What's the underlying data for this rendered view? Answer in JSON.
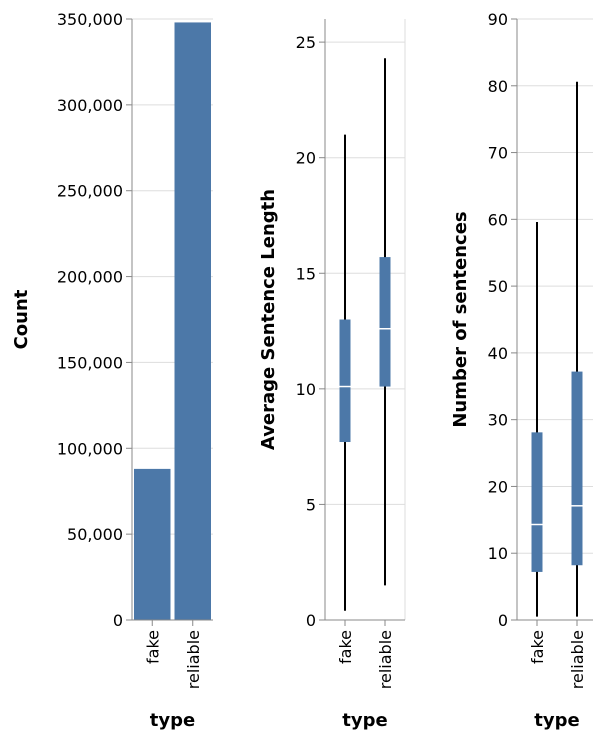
{
  "chart_data": [
    {
      "type": "bar",
      "categories": [
        "fake",
        "reliable"
      ],
      "values": [
        88000,
        348000
      ],
      "xlabel": "type",
      "ylabel": "Count",
      "ylim": [
        0,
        350000
      ],
      "yticks": [
        0,
        50000,
        100000,
        150000,
        200000,
        250000,
        300000,
        350000
      ],
      "ytick_labels": [
        "0",
        "50,000",
        "100,000",
        "150,000",
        "200,000",
        "250,000",
        "300,000",
        "350,000"
      ],
      "grid": true,
      "color": "#4c78a8"
    },
    {
      "type": "boxplot",
      "categories": [
        "fake",
        "reliable"
      ],
      "boxes": [
        {
          "min": 0.4,
          "q1": 7.7,
          "median": 10.1,
          "q3": 13.0,
          "max": 21.0
        },
        {
          "min": 1.5,
          "q1": 10.1,
          "median": 12.6,
          "q3": 15.7,
          "max": 24.3
        }
      ],
      "xlabel": "type",
      "ylabel": "Average Sentence Length",
      "ylim": [
        0,
        26
      ],
      "yticks": [
        0,
        5,
        10,
        15,
        20,
        25
      ],
      "ytick_labels": [
        "0",
        "5",
        "10",
        "15",
        "20",
        "25"
      ],
      "grid": true,
      "color": "#4c78a8"
    },
    {
      "type": "boxplot",
      "categories": [
        "fake",
        "reliable"
      ],
      "boxes": [
        {
          "min": 0.5,
          "q1": 7.2,
          "median": 14.3,
          "q3": 28.1,
          "max": 59.6
        },
        {
          "min": 0.5,
          "q1": 8.2,
          "median": 17.1,
          "q3": 37.2,
          "max": 80.6
        }
      ],
      "xlabel": "type",
      "ylabel": "Number of sentences",
      "ylim": [
        0,
        90
      ],
      "yticks": [
        0,
        10,
        20,
        30,
        40,
        50,
        60,
        70,
        80,
        90
      ],
      "ytick_labels": [
        "0",
        "10",
        "20",
        "30",
        "40",
        "50",
        "60",
        "70",
        "80",
        "90"
      ],
      "grid": true,
      "color": "#4c78a8"
    }
  ]
}
